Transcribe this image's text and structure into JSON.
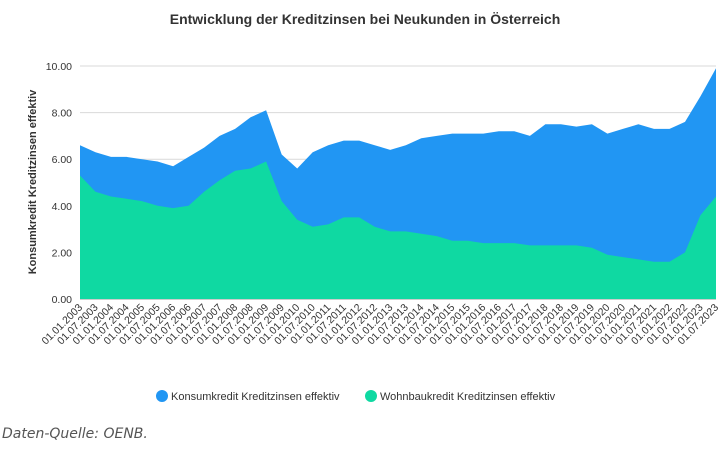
{
  "chart_data": {
    "type": "area",
    "title": "Entwicklung der Kreditzinsen bei Neukunden in Österreich",
    "ylabel": "Konsumkredit Kreditzinsen effektiv",
    "xlabel": "",
    "ylim": [
      0,
      10
    ],
    "yticks": [
      "0.00",
      "2.00",
      "4.00",
      "6.00",
      "8.00",
      "10.00"
    ],
    "grid": true,
    "legend_position": "bottom",
    "x_dates": [
      "01.01.2003",
      "01.07.2003",
      "01.01.2004",
      "01.07.2004",
      "01.01.2005",
      "01.07.2005",
      "01.01.2006",
      "01.07.2006",
      "01.01.2007",
      "01.07.2007",
      "01.01.2008",
      "01.07.2008",
      "01.01.2009",
      "01.07.2009",
      "01.01.2010",
      "01.07.2010",
      "01.01.2011",
      "01.07.2011",
      "01.01.2012",
      "01.07.2012",
      "01.01.2013",
      "01.07.2013",
      "01.01.2014",
      "01.07.2014",
      "01.01.2015",
      "01.07.2015",
      "01.01.2016",
      "01.07.2016",
      "01.01.2017",
      "01.07.2017",
      "01.01.2018",
      "01.07.2018",
      "01.01.2019",
      "01.07.2019",
      "01.01.2020",
      "01.07.2020",
      "01.01.2021",
      "01.07.2021",
      "01.01.2022",
      "01.07.2022",
      "01.01.2023",
      "01.07.2023"
    ],
    "series": [
      {
        "name": "Konsumkredit Kreditzinsen effektiv",
        "color": "#2196f3",
        "values": [
          6.6,
          6.3,
          6.1,
          6.1,
          6.0,
          5.9,
          5.7,
          6.1,
          6.5,
          7.0,
          7.3,
          7.8,
          8.1,
          6.2,
          5.6,
          6.3,
          6.6,
          6.8,
          6.8,
          6.6,
          6.4,
          6.6,
          6.9,
          7.0,
          7.1,
          7.1,
          7.1,
          7.2,
          7.2,
          7.0,
          7.5,
          7.5,
          7.4,
          7.5,
          7.1,
          7.3,
          7.5,
          7.3,
          7.3,
          7.6,
          8.7,
          9.9
        ]
      },
      {
        "name": "Wohnbaukredit Kreditzinsen effektiv",
        "color": "#0fd9a2",
        "values": [
          5.3,
          4.6,
          4.4,
          4.3,
          4.2,
          4.0,
          3.9,
          4.0,
          4.6,
          5.1,
          5.5,
          5.6,
          5.9,
          4.2,
          3.4,
          3.1,
          3.2,
          3.5,
          3.5,
          3.1,
          2.9,
          2.9,
          2.8,
          2.7,
          2.5,
          2.5,
          2.4,
          2.4,
          2.4,
          2.3,
          2.3,
          2.3,
          2.3,
          2.2,
          1.9,
          1.8,
          1.7,
          1.6,
          1.6,
          2.0,
          3.6,
          4.4
        ]
      }
    ]
  },
  "source_text": "Daten-Quelle: OENB."
}
